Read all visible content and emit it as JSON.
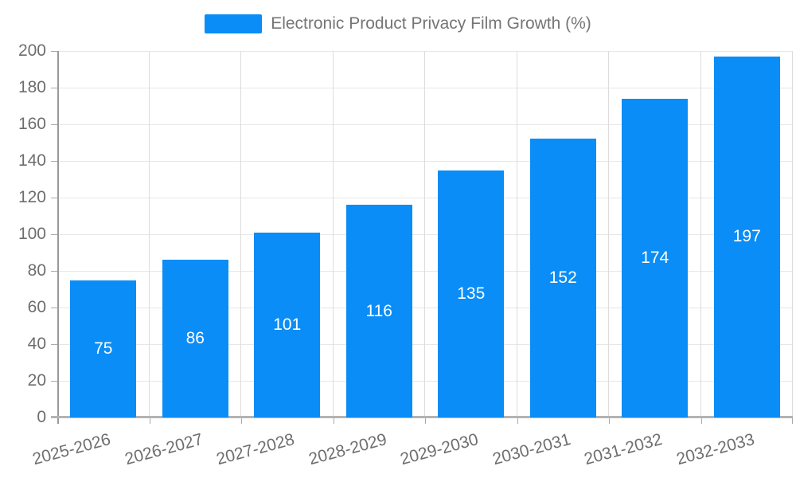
{
  "legend": {
    "label": "Electronic Product Privacy Film Growth (%)"
  },
  "chart_data": {
    "type": "bar",
    "title": "Electronic Product Privacy Film Growth (%)",
    "categories": [
      "2025-2026",
      "2026-2027",
      "2027-2028",
      "2028-2029",
      "2029-2030",
      "2030-2031",
      "2031-2032",
      "2032-2033"
    ],
    "values": [
      75,
      86,
      101,
      116,
      135,
      152,
      174,
      197
    ],
    "xlabel": "",
    "ylabel": "",
    "ylim": [
      0,
      200
    ],
    "ytick_interval": 20,
    "y_tick_labels": [
      "0",
      "20",
      "40",
      "60",
      "80",
      "100",
      "120",
      "140",
      "160",
      "180",
      "200"
    ],
    "grid": true,
    "legend_position": "top",
    "bar_label_position": "inside-center"
  },
  "colors": {
    "bar": "#0a8df6",
    "bar_label": "#ffffff",
    "axis_label": "#6e6e6e",
    "legend_text": "#757575",
    "grid_h": "#e7e7e7",
    "grid_v": "#dcdcdc",
    "y_axis_line": "#999999",
    "x_axis_line": "#b3b3b3",
    "tick": "#aaaaaa"
  }
}
